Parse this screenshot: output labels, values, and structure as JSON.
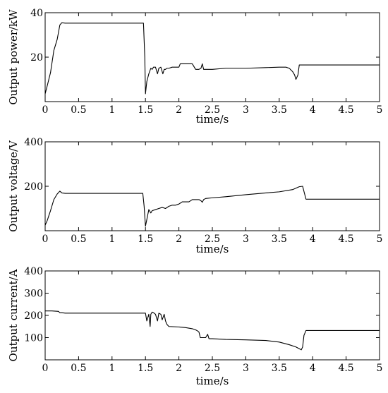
{
  "chart_data": [
    {
      "type": "line",
      "xlabel": "time/s",
      "ylabel": "Output power/kW",
      "xlim": [
        0,
        5
      ],
      "ylim": [
        0,
        40
      ],
      "xticks": [
        0,
        0.5,
        1,
        1.5,
        2,
        2.5,
        3,
        3.5,
        4,
        4.5,
        5
      ],
      "xtick_labels": [
        "0",
        "0.5",
        "1",
        "1.5",
        "2",
        "2.5",
        "3",
        "3.5",
        "4",
        "4.5",
        "5"
      ],
      "yticks": [
        20,
        40
      ],
      "ytick_labels": [
        "20",
        "40"
      ],
      "grid": false,
      "series": [
        {
          "x": [
            0,
            0.03,
            0.08,
            0.13,
            0.18,
            0.22,
            0.25,
            0.3,
            0.5,
            1.0,
            1.47,
            1.49,
            1.5,
            1.52,
            1.55,
            1.58,
            1.6,
            1.62,
            1.65,
            1.68,
            1.7,
            1.73,
            1.76,
            1.78,
            1.8,
            1.82,
            1.85,
            1.9,
            1.95,
            2.0,
            2.02,
            2.05,
            2.1,
            2.15,
            2.2,
            2.25,
            2.3,
            2.33,
            2.35,
            2.37,
            2.4,
            2.5,
            2.7,
            3.0,
            3.3,
            3.5,
            3.6,
            3.65,
            3.7,
            3.73,
            3.75,
            3.78,
            3.8,
            3.85,
            3.9,
            4.0,
            4.5,
            5.0
          ],
          "y": [
            3.5,
            7,
            13,
            23,
            28,
            34.5,
            35.5,
            35.3,
            35.3,
            35.3,
            35.3,
            20,
            3.5,
            9,
            12.5,
            15,
            14.5,
            15.5,
            15.5,
            12.5,
            15,
            15.5,
            12.5,
            14.5,
            14.5,
            15,
            15,
            15.5,
            15.5,
            15.5,
            17,
            17,
            17,
            17,
            17,
            14.5,
            14.5,
            15,
            17,
            14.5,
            14.5,
            14.5,
            15,
            15,
            15.3,
            15.5,
            15.5,
            15,
            13.5,
            12,
            10,
            12,
            16.5,
            16.5,
            16.5,
            16.5,
            16.5,
            16.5
          ]
        }
      ]
    },
    {
      "type": "line",
      "xlabel": "time/s",
      "ylabel": "Output voltage/V",
      "xlim": [
        0,
        5
      ],
      "ylim": [
        0,
        400
      ],
      "xticks": [
        0,
        0.5,
        1,
        1.5,
        2,
        2.5,
        3,
        3.5,
        4,
        4.5,
        5
      ],
      "xtick_labels": [
        "0",
        "0.5",
        "1",
        "1.5",
        "2",
        "2.5",
        "3",
        "3.5",
        "4",
        "4.5",
        "5"
      ],
      "yticks": [
        200,
        400
      ],
      "ytick_labels": [
        "200",
        "400"
      ],
      "grid": false,
      "series": [
        {
          "x": [
            0,
            0.03,
            0.08,
            0.13,
            0.18,
            0.22,
            0.25,
            0.3,
            0.5,
            1.0,
            1.46,
            1.48,
            1.5,
            1.52,
            1.55,
            1.58,
            1.6,
            1.65,
            1.7,
            1.75,
            1.8,
            1.85,
            1.9,
            1.95,
            2.0,
            2.05,
            2.1,
            2.15,
            2.2,
            2.25,
            2.3,
            2.33,
            2.35,
            2.37,
            2.4,
            2.5,
            2.7,
            3.0,
            3.3,
            3.5,
            3.7,
            3.8,
            3.85,
            3.9,
            4.0,
            4.5,
            5.0
          ],
          "y": [
            25,
            45,
            90,
            140,
            165,
            178,
            170,
            168,
            168,
            168,
            168,
            110,
            20,
            50,
            95,
            80,
            90,
            95,
            100,
            105,
            100,
            110,
            115,
            115,
            120,
            130,
            130,
            130,
            140,
            140,
            140,
            135,
            128,
            140,
            145,
            148,
            153,
            162,
            170,
            175,
            185,
            198,
            200,
            142,
            142,
            142,
            142
          ]
        }
      ]
    },
    {
      "type": "line",
      "xlabel": "time/s",
      "ylabel": "Output current/A",
      "xlim": [
        0,
        5
      ],
      "ylim": [
        0,
        400
      ],
      "xticks": [
        0,
        0.5,
        1,
        1.5,
        2,
        2.5,
        3,
        3.5,
        4,
        4.5,
        5
      ],
      "xtick_labels": [
        "0",
        "0.5",
        "1",
        "1.5",
        "2",
        "2.5",
        "3",
        "3.5",
        "4",
        "4.5",
        "5"
      ],
      "yticks": [
        100,
        200,
        300,
        400
      ],
      "ytick_labels": [
        "100",
        "200",
        "300",
        "400"
      ],
      "grid": false,
      "series": [
        {
          "x": [
            0,
            0.1,
            0.2,
            0.22,
            0.25,
            0.3,
            0.5,
            1.0,
            1.5,
            1.52,
            1.55,
            1.57,
            1.58,
            1.6,
            1.62,
            1.65,
            1.68,
            1.7,
            1.73,
            1.75,
            1.78,
            1.8,
            1.82,
            1.85,
            2.0,
            2.1,
            2.2,
            2.25,
            2.28,
            2.3,
            2.32,
            2.35,
            2.4,
            2.43,
            2.45,
            2.5,
            2.7,
            3.0,
            3.3,
            3.5,
            3.65,
            3.75,
            3.8,
            3.83,
            3.85,
            3.87,
            3.9,
            4.0,
            4.5,
            5.0
          ],
          "y": [
            220,
            220,
            218,
            212,
            212,
            210,
            210,
            210,
            210,
            175,
            205,
            150,
            205,
            215,
            212,
            205,
            175,
            210,
            205,
            180,
            205,
            175,
            160,
            150,
            148,
            145,
            140,
            135,
            130,
            125,
            100,
            100,
            100,
            115,
            95,
            95,
            92,
            90,
            87,
            80,
            68,
            58,
            50,
            45,
            58,
            110,
            132,
            132,
            132,
            132
          ]
        }
      ]
    }
  ]
}
